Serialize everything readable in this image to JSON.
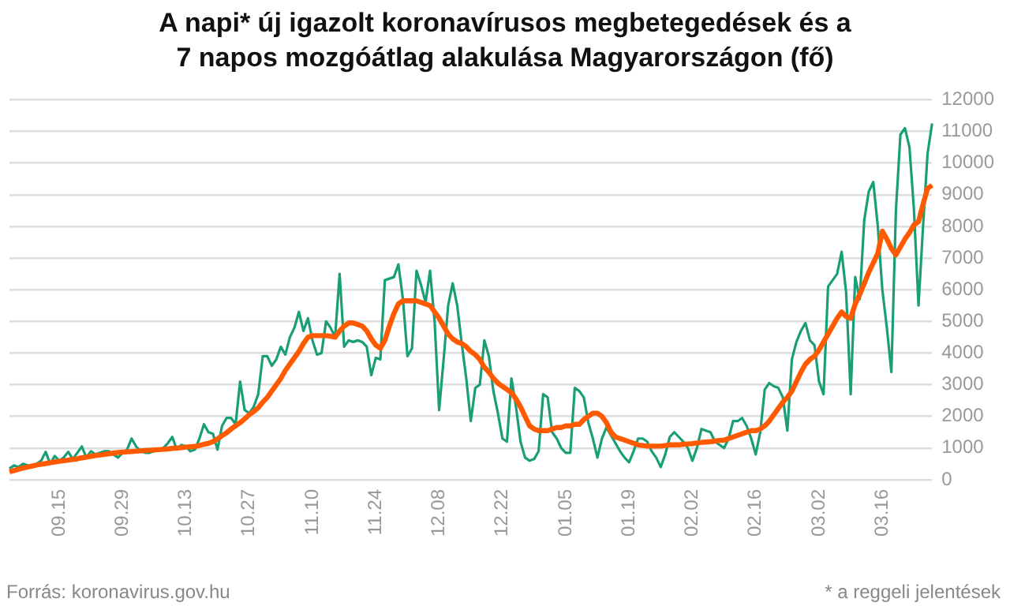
{
  "chart_data": {
    "type": "line",
    "title": "A napi* új igazolt koronavírusos megbetegedések és a 7 napos mozgóátlag alakulása Magyarországon (fő)",
    "categories": [
      null,
      null,
      null,
      null,
      null,
      null,
      null,
      null,
      null,
      null,
      null,
      "09.15",
      null,
      null,
      null,
      null,
      null,
      null,
      null,
      null,
      null,
      null,
      null,
      null,
      null,
      "09.29",
      null,
      null,
      null,
      null,
      null,
      null,
      null,
      null,
      null,
      null,
      null,
      null,
      null,
      "10.13",
      null,
      null,
      null,
      null,
      null,
      null,
      null,
      null,
      null,
      null,
      null,
      null,
      null,
      "10.27",
      null,
      null,
      null,
      null,
      null,
      null,
      null,
      null,
      null,
      null,
      null,
      null,
      null,
      "11.10",
      null,
      null,
      null,
      null,
      null,
      null,
      null,
      null,
      null,
      null,
      null,
      null,
      null,
      "11.24",
      null,
      null,
      null,
      null,
      null,
      null,
      null,
      null,
      null,
      null,
      null,
      null,
      null,
      "12.08",
      null,
      null,
      null,
      null,
      null,
      null,
      null,
      null,
      null,
      null,
      null,
      null,
      null,
      "12.22",
      null,
      null,
      null,
      null,
      null,
      null,
      null,
      null,
      null,
      null,
      null,
      null,
      null,
      "01.05",
      null,
      null,
      null,
      null,
      null,
      null,
      null,
      null,
      null,
      null,
      null,
      null,
      null,
      "01.19",
      null,
      null,
      null,
      null,
      null,
      null,
      null,
      null,
      null,
      null,
      null,
      null,
      null,
      "02.02",
      null,
      null,
      null,
      null,
      null,
      null,
      null,
      null,
      null,
      null,
      null,
      null,
      null,
      "02.16",
      null,
      null,
      null,
      null,
      null,
      null,
      null,
      null,
      null,
      null,
      null,
      null,
      null,
      "03.02",
      null,
      null,
      null,
      null,
      null,
      null,
      null,
      null,
      null,
      null,
      null,
      null,
      null,
      "03.16",
      null,
      null,
      null,
      null,
      null,
      null,
      null,
      null,
      null,
      null,
      null
    ],
    "series": [
      {
        "color": "#1a9e77",
        "values": [
          350,
          450,
          400,
          500,
          450,
          400,
          500,
          600,
          880,
          500,
          750,
          600,
          700,
          880,
          650,
          850,
          1050,
          700,
          900,
          800,
          850,
          900,
          900,
          800,
          700,
          850,
          950,
          1300,
          1050,
          900,
          850,
          850,
          900,
          950,
          1000,
          1150,
          1350,
          950,
          1100,
          1050,
          900,
          950,
          1300,
          1750,
          1500,
          1450,
          950,
          1700,
          1950,
          1950,
          1750,
          3100,
          2200,
          2100,
          2300,
          2700,
          3900,
          3900,
          3600,
          3800,
          4200,
          3950,
          4500,
          4800,
          5300,
          4700,
          5100,
          4400,
          3950,
          4000,
          5000,
          4800,
          4500,
          6500,
          4200,
          4400,
          4350,
          4400,
          4350,
          4200,
          3300,
          3850,
          3800,
          6300,
          6350,
          6400,
          6800,
          5700,
          3900,
          4150,
          6600,
          6150,
          5600,
          6600,
          5000,
          2200,
          3800,
          5500,
          6200,
          5500,
          4300,
          3200,
          1850,
          2900,
          3000,
          4400,
          3900,
          2800,
          2100,
          1300,
          1200,
          3200,
          2300,
          1200,
          700,
          600,
          650,
          900,
          2700,
          2600,
          1500,
          1300,
          1000,
          850,
          850,
          2900,
          2800,
          2600,
          1800,
          1300,
          700,
          1300,
          1650,
          1400,
          1150,
          900,
          700,
          550,
          900,
          1300,
          1300,
          1200,
          900,
          700,
          400,
          800,
          1350,
          1500,
          1350,
          1200,
          1000,
          600,
          1000,
          1600,
          1550,
          1500,
          1200,
          1100,
          1000,
          1300,
          1850,
          1850,
          1950,
          1700,
          1300,
          800,
          1500,
          2850,
          3050,
          2950,
          2900,
          2600,
          1550,
          3800,
          4350,
          4700,
          4950,
          4400,
          4250,
          3100,
          2700,
          6100,
          6300,
          6500,
          7200,
          5900,
          2700,
          6400,
          5700,
          8200,
          9100,
          9400,
          8000,
          6000,
          4800,
          3400,
          8500,
          10900,
          11100,
          10500,
          8500,
          5500,
          8000,
          10300,
          11250
        ]
      },
      {
        "color": "#ff5a00",
        "values": [
          250,
          290,
          330,
          370,
          400,
          430,
          460,
          490,
          510,
          540,
          560,
          580,
          600,
          620,
          640,
          660,
          690,
          710,
          740,
          760,
          780,
          800,
          820,
          840,
          860,
          870,
          880,
          890,
          900,
          910,
          920,
          930,
          940,
          950,
          960,
          970,
          990,
          1000,
          1010,
          1030,
          1040,
          1050,
          1080,
          1120,
          1150,
          1200,
          1290,
          1390,
          1480,
          1600,
          1700,
          1800,
          1920,
          2050,
          2150,
          2270,
          2450,
          2600,
          2800,
          3000,
          3200,
          3450,
          3650,
          3850,
          4050,
          4300,
          4500,
          4550,
          4550,
          4550,
          4550,
          4530,
          4500,
          4700,
          4850,
          4950,
          4950,
          4900,
          4850,
          4700,
          4450,
          4250,
          4150,
          4400,
          4850,
          5250,
          5550,
          5650,
          5650,
          5650,
          5650,
          5600,
          5550,
          5500,
          5300,
          5100,
          4850,
          4600,
          4450,
          4350,
          4300,
          4200,
          4050,
          3950,
          3800,
          3550,
          3400,
          3200,
          3050,
          2950,
          2850,
          2750,
          2550,
          2300,
          2000,
          1700,
          1600,
          1550,
          1550,
          1550,
          1600,
          1650,
          1650,
          1700,
          1700,
          1750,
          1750,
          1900,
          2000,
          2100,
          2100,
          2000,
          1800,
          1500,
          1350,
          1300,
          1250,
          1200,
          1150,
          1100,
          1080,
          1060,
          1060,
          1060,
          1060,
          1080,
          1100,
          1100,
          1100,
          1120,
          1130,
          1140,
          1160,
          1180,
          1190,
          1200,
          1220,
          1240,
          1250,
          1300,
          1350,
          1400,
          1450,
          1500,
          1550,
          1550,
          1600,
          1700,
          1850,
          2050,
          2250,
          2450,
          2600,
          2800,
          3100,
          3400,
          3650,
          3800,
          3900,
          4100,
          4350,
          4600,
          4850,
          5100,
          5300,
          5150,
          5100,
          5550,
          5850,
          6200,
          6550,
          6850,
          7150,
          7850,
          7600,
          7300,
          7100,
          7350,
          7600,
          7800,
          8050,
          8150,
          8700,
          9200,
          9300
        ]
      }
    ],
    "ylim": [
      0,
      12000
    ],
    "yticks": [
      0,
      1000,
      2000,
      3000,
      4000,
      5000,
      6000,
      7000,
      8000,
      9000,
      10000,
      11000,
      12000
    ],
    "grid": "y",
    "legend": false,
    "marker": "none",
    "line_style": "solid",
    "annotations": [
      "Forrás: koronavirus.gov.hu",
      "* a reggeli jelentések"
    ]
  }
}
